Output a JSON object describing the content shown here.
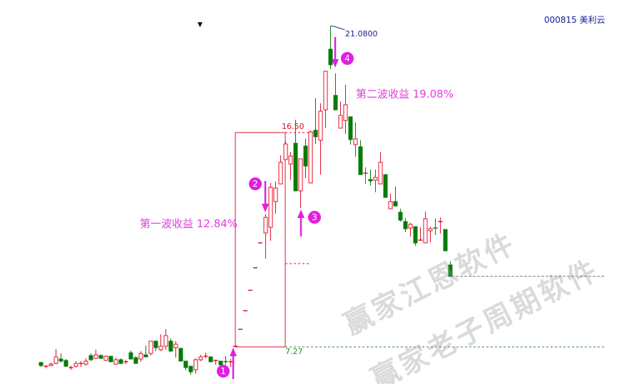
{
  "header": {
    "stock_code_name": "000815 美利云",
    "dropdown_icon": "caret-down-icon"
  },
  "annotations": {
    "wave1_label": "第一波收益 12.84%",
    "wave2_label": "第二波收益 19.08%",
    "box_top_label": "16.50",
    "box_bottom_label": "7.27",
    "peak_label": "21.0800",
    "markers": [
      "1",
      "2",
      "3",
      "4"
    ]
  },
  "watermarks": [
    "赢家江恩软件",
    "赢家老子周期软件"
  ],
  "colors": {
    "up": "#e0102a",
    "down": "#087a08",
    "annotation": "#e020e0",
    "peak": "#1a1a9a"
  },
  "chart_data": {
    "type": "candlestick",
    "title": "000815 美利云",
    "format": "open,high,low,close",
    "grid": false,
    "ylim": [
      5.9,
      21.6
    ],
    "candles": [
      [
        6.6,
        6.63,
        6.41,
        6.47
      ],
      [
        6.44,
        6.47,
        6.35,
        6.44
      ],
      [
        6.47,
        6.6,
        6.44,
        6.53
      ],
      [
        6.56,
        7.18,
        6.53,
        6.84
      ],
      [
        6.75,
        6.99,
        6.6,
        6.66
      ],
      [
        6.69,
        6.75,
        6.41,
        6.44
      ],
      [
        6.38,
        6.47,
        6.29,
        6.38
      ],
      [
        6.44,
        6.66,
        6.38,
        6.56
      ],
      [
        6.56,
        6.66,
        6.41,
        6.56
      ],
      [
        6.53,
        6.78,
        6.47,
        6.66
      ],
      [
        6.9,
        6.99,
        6.66,
        6.72
      ],
      [
        6.78,
        7.15,
        6.75,
        6.93
      ],
      [
        6.9,
        6.96,
        6.78,
        6.78
      ],
      [
        6.69,
        6.9,
        6.66,
        6.87
      ],
      [
        6.87,
        6.87,
        6.63,
        6.63
      ],
      [
        6.53,
        6.81,
        6.5,
        6.72
      ],
      [
        6.72,
        6.78,
        6.53,
        6.56
      ],
      [
        6.63,
        6.72,
        6.53,
        6.63
      ],
      [
        7.02,
        7.12,
        6.75,
        6.75
      ],
      [
        6.81,
        6.87,
        6.56,
        6.56
      ],
      [
        6.75,
        7.09,
        6.63,
        6.99
      ],
      [
        6.93,
        7.33,
        6.84,
        6.84
      ],
      [
        6.99,
        7.52,
        6.9,
        7.52
      ],
      [
        7.52,
        7.52,
        7.09,
        7.24
      ],
      [
        7.15,
        7.82,
        7.09,
        7.3
      ],
      [
        7.3,
        8.04,
        7.15,
        7.76
      ],
      [
        7.52,
        7.64,
        7.06,
        7.09
      ],
      [
        7.24,
        7.52,
        6.81,
        7.39
      ],
      [
        7.21,
        7.21,
        6.66,
        6.66
      ],
      [
        6.66,
        6.66,
        6.26,
        6.38
      ],
      [
        6.44,
        6.44,
        6.07,
        6.2
      ],
      [
        6.29,
        6.78,
        6.13,
        6.72
      ],
      [
        6.72,
        6.93,
        6.66,
        6.84
      ],
      [
        6.87,
        7.02,
        6.78,
        6.87
      ],
      [
        6.84,
        6.87,
        6.63,
        6.63
      ],
      [
        6.69,
        6.72,
        6.5,
        6.69
      ],
      [
        6.66,
        6.66,
        6.5,
        6.5
      ],
      [
        6.64,
        6.87,
        6.5,
        6.62
      ],
      [
        6.63,
        6.75,
        6.41,
        6.63
      ],
      [
        7.3,
        7.3,
        7.3,
        7.3
      ],
      [
        8.03,
        8.03,
        8.03,
        8.03
      ],
      [
        8.83,
        8.83,
        8.83,
        8.83
      ],
      [
        9.71,
        9.71,
        9.71,
        9.71
      ],
      [
        10.68,
        10.68,
        10.68,
        10.68
      ],
      [
        11.75,
        11.75,
        11.75,
        11.75
      ],
      [
        12.18,
        13.0,
        11.07,
        12.85
      ],
      [
        12.42,
        14.33,
        11.84,
        14.14
      ],
      [
        13.53,
        14.39,
        13.01,
        14.11
      ],
      [
        14.29,
        15.52,
        14.29,
        15.22
      ],
      [
        15.34,
        16.14,
        15.34,
        16.01
      ],
      [
        15.15,
        15.67,
        14.45,
        15.49
      ],
      [
        16.04,
        17.05,
        13.99,
        13.99
      ],
      [
        13.99,
        15.37,
        13.25,
        15.37
      ],
      [
        15.92,
        16.23,
        14.54,
        15.06
      ],
      [
        14.33,
        16.6,
        14.33,
        16.53
      ],
      [
        16.6,
        17.98,
        16.01,
        16.32
      ],
      [
        16.17,
        17.76,
        14.69,
        17.42
      ],
      [
        17.48,
        19.14,
        16.69,
        19.14
      ],
      [
        20.09,
        21.08,
        19.23,
        19.42
      ],
      [
        18.1,
        19.05,
        17.48,
        17.48
      ],
      [
        16.69,
        17.85,
        16.69,
        17.24
      ],
      [
        17.02,
        18.56,
        16.44,
        17.7
      ],
      [
        17.18,
        17.18,
        15.98,
        16.2
      ],
      [
        15.98,
        16.93,
        15.46,
        16.23
      ],
      [
        15.89,
        16.17,
        14.69,
        14.69
      ],
      [
        14.75,
        15.0,
        14.29,
        14.75
      ],
      [
        14.48,
        14.91,
        14.23,
        14.42
      ],
      [
        14.45,
        14.91,
        13.93,
        14.57
      ],
      [
        14.29,
        15.67,
        14.29,
        15.22
      ],
      [
        14.69,
        14.69,
        13.71,
        13.71
      ],
      [
        13.22,
        13.87,
        13.22,
        13.53
      ],
      [
        13.53,
        14.17,
        13.34,
        13.34
      ],
      [
        13.07,
        13.22,
        12.67,
        12.73
      ],
      [
        12.67,
        12.82,
        12.21,
        12.36
      ],
      [
        12.39,
        12.61,
        12.02,
        12.55
      ],
      [
        12.45,
        12.45,
        11.63,
        11.75
      ],
      [
        11.87,
        12.42,
        11.84,
        11.87
      ],
      [
        11.75,
        13.1,
        11.75,
        12.79
      ],
      [
        12.27,
        12.45,
        11.78,
        12.36
      ],
      [
        12.39,
        12.79,
        12.09,
        12.36
      ],
      [
        12.67,
        12.85,
        12.15,
        12.67
      ],
      [
        12.33,
        12.33,
        11.41,
        11.41
      ],
      [
        10.8,
        10.95,
        10.31,
        10.31
      ]
    ],
    "box": {
      "top": 16.5,
      "bottom": 7.27,
      "start_index": 39,
      "end_index": 49
    },
    "reference_lines": [
      {
        "value": 7.27,
        "style": "green-dashed"
      },
      {
        "value": 16.5,
        "style": "red-dashed"
      },
      {
        "value": 10.86,
        "style": "red-dashed"
      },
      {
        "value": 10.31,
        "style": "gray-dashed"
      }
    ],
    "peak": {
      "index": 58,
      "value": 21.08
    },
    "signals": [
      {
        "label": "1",
        "index": 39,
        "direction": "up"
      },
      {
        "label": "2",
        "index": 45,
        "direction": "down"
      },
      {
        "label": "3",
        "index": 52,
        "direction": "up"
      },
      {
        "label": "4",
        "index": 59,
        "direction": "down"
      }
    ]
  }
}
